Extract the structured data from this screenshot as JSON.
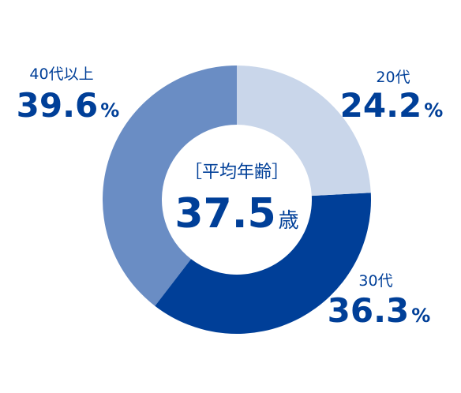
{
  "chart_data": {
    "type": "donut",
    "categories": [
      "20代",
      "30代",
      "40代以上"
    ],
    "values": [
      24.2,
      36.3,
      39.6
    ],
    "colors": [
      "#c9d6ea",
      "#003f98",
      "#6a8dc4"
    ],
    "value_suffix": "%",
    "center": {
      "label": "［平均年齢］",
      "value": 37.5,
      "unit": "歳"
    }
  }
}
